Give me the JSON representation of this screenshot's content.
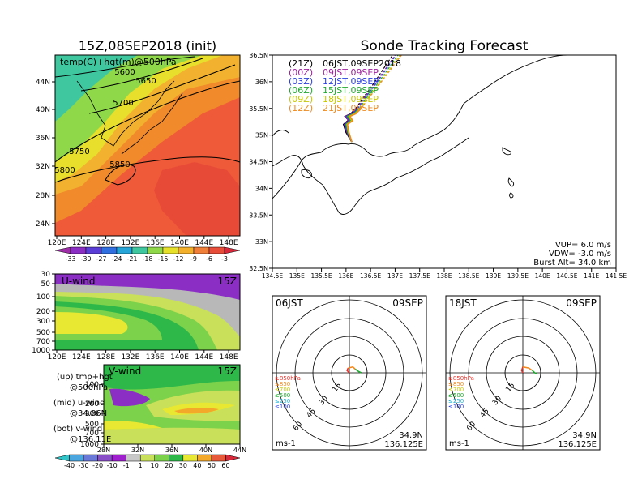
{
  "page": {
    "init_title": "15Z,08SEP2018 (init)",
    "main_title": "Sonde Tracking Forecast"
  },
  "map500": {
    "label": "temp(C)+hgt(m)@500hPa",
    "contour_labels": [
      "5600",
      "5650",
      "5700",
      "5750",
      "5850",
      "5800"
    ],
    "lat_ticks": [
      "44N",
      "40N",
      "36N",
      "32N",
      "28N",
      "24N"
    ],
    "lon_ticks": [
      "120E",
      "124E",
      "128E",
      "132E",
      "136E",
      "140E",
      "144E",
      "148E"
    ],
    "colorbar_labels": [
      "-33",
      "-30",
      "-27",
      "-24",
      "-21",
      "-18",
      "-15",
      "-12",
      "-9",
      "-6",
      "-3"
    ],
    "colorbar_colors": [
      "#9f2fa8",
      "#8a2ec4",
      "#5a3dd6",
      "#2f6fe0",
      "#26a6d8",
      "#3fc8a0",
      "#8fd84a",
      "#e6e02a",
      "#f3b02a",
      "#f07f3a",
      "#e84d3a",
      "#d8283a"
    ]
  },
  "uwind": {
    "label": "U-wind",
    "time": "15Z",
    "p_ticks": [
      "30",
      "50",
      "100",
      "200",
      "300",
      "500",
      "700",
      "1000"
    ],
    "lon_ticks": [
      "120E",
      "124E",
      "128E",
      "132E",
      "136E",
      "140E",
      "144E",
      "148E"
    ]
  },
  "vwind": {
    "label": "V-wind",
    "time": "15Z",
    "p_ticks": [
      "100",
      "200",
      "300",
      "500",
      "700",
      "1000"
    ],
    "lat_ticks": [
      "28N",
      "32N",
      "36N",
      "40N",
      "44N"
    ]
  },
  "legend_text": {
    "up1": "(up) tmp+hgt",
    "up2": "@500hPa",
    "mid1": "(mid) u-wind",
    "mid2": "@34.86N",
    "bot1": "(bot) v-wind",
    "bot2": "@136.11E"
  },
  "wind_colorbar": {
    "labels": [
      "-40",
      "-30",
      "-20",
      "-10",
      "-1",
      "1",
      "10",
      "20",
      "30",
      "40",
      "50",
      "60"
    ],
    "colors": [
      "#2ec4c8",
      "#4ba6e0",
      "#6a78d8",
      "#8a4fc8",
      "#a020d0",
      "#c8c8c8",
      "#c8e05a",
      "#7cd24a",
      "#2eb84a",
      "#e8e832",
      "#f3a82a",
      "#e8583a",
      "#d8283a"
    ]
  },
  "track_map": {
    "legend": [
      {
        "code": "(21Z)",
        "time": "06JST,09SEP2018",
        "color": "#000000"
      },
      {
        "code": "(00Z)",
        "time": "09JST,09SEP",
        "color": "#a020a0"
      },
      {
        "code": "(03Z)",
        "time": "12JST,09SEP",
        "color": "#2a3fe0"
      },
      {
        "code": "(06Z)",
        "time": "15JST,09SEP",
        "color": "#20a830"
      },
      {
        "code": "(09Z)",
        "time": "18JST,09SEP",
        "color": "#c8c800"
      },
      {
        "code": "(12Z)",
        "time": "21JST,09SEP",
        "color": "#f08a20"
      }
    ],
    "lat_ticks": [
      "36.5N",
      "36N",
      "35.5N",
      "35N",
      "34.5N",
      "34N",
      "33.5N",
      "33N",
      "32.5N"
    ],
    "lon_ticks": [
      "134.5E",
      "135E",
      "135.5E",
      "136E",
      "136.5E",
      "137E",
      "137.5E",
      "138E",
      "138.5E",
      "139E",
      "139.5E",
      "140E",
      "140.5E",
      "141E",
      "141.5E"
    ],
    "vup": "VUP= 6.0 m/s",
    "vdw": "VDW= -3.0 m/s",
    "burst": "Burst Alt= 34.0 km"
  },
  "hodograph_left": {
    "time": "06JST",
    "date": "09SEP",
    "lat": "34.9N",
    "lon": "136.125E",
    "unit": "ms-1",
    "rings": [
      "15",
      "30",
      "45",
      "60"
    ],
    "levels": [
      "≥850hPa",
      "≤850",
      "≤700",
      "≤500",
      "≤250",
      "≤100"
    ]
  },
  "hodograph_right": {
    "time": "18JST",
    "date": "09SEP",
    "lat": "34.9N",
    "lon": "136.125E",
    "unit": "ms-1",
    "rings": [
      "15",
      "30",
      "45",
      "60"
    ],
    "levels": [
      "≥850hPa",
      "≤850",
      "≤700",
      "≤500",
      "≤250",
      "≤100"
    ]
  },
  "level_colors": [
    "#e8302a",
    "#f08a20",
    "#c8c800",
    "#20a830",
    "#20b0d0",
    "#2a3fe0"
  ],
  "chart_data": [
    {
      "type": "heatmap",
      "title": "15Z,08SEP2018 (init)",
      "subtitle": "temp(C)+hgt(m)@500hPa",
      "xlim": [
        "120E",
        "150E"
      ],
      "ylim": [
        "22N",
        "48N"
      ],
      "contours": [
        5600,
        5650,
        5700,
        5750,
        5800,
        5850
      ],
      "colorbar": [
        -33,
        -30,
        -27,
        -24,
        -21,
        -18,
        -15,
        -12,
        -9,
        -6,
        -3
      ]
    },
    {
      "type": "heatmap",
      "title": "U-wind",
      "x": [
        "120E",
        "124E",
        "128E",
        "132E",
        "136E",
        "140E",
        "144E",
        "148E"
      ],
      "y_pressure_hPa": [
        30,
        50,
        100,
        200,
        300,
        500,
        700,
        1000
      ]
    },
    {
      "type": "heatmap",
      "title": "V-wind",
      "x": [
        "28N",
        "32N",
        "36N",
        "40N",
        "44N"
      ],
      "y_pressure_hPa": [
        100,
        200,
        300,
        500,
        700,
        1000
      ],
      "colorbar": [
        -40,
        -30,
        -20,
        -10,
        -1,
        1,
        10,
        20,
        30,
        40,
        50,
        60
      ]
    },
    {
      "type": "line",
      "title": "Sonde Tracking Forecast",
      "xlim": [
        134.5,
        141.5
      ],
      "ylim": [
        32.5,
        36.5
      ],
      "series": [
        {
          "name": "(21Z) 06JST,09SEP2018",
          "x": [
            136.12,
            136.0,
            135.95,
            136.05,
            135.98,
            136.1,
            136.2,
            136.35,
            136.55,
            136.95
          ],
          "y": [
            34.87,
            35.05,
            35.2,
            35.28,
            35.35,
            35.4,
            35.5,
            35.7,
            35.95,
            36.5
          ]
        },
        {
          "name": "(00Z) 09JST,09SEP",
          "x": [
            136.12,
            136.02,
            135.97,
            136.06,
            135.99,
            136.12,
            136.22,
            136.37,
            136.58,
            137.0
          ],
          "y": [
            34.87,
            35.05,
            35.2,
            35.27,
            35.35,
            35.4,
            35.5,
            35.7,
            35.95,
            36.5
          ]
        },
        {
          "name": "(03Z) 12JST,09SEP",
          "x": [
            136.12,
            136.03,
            135.98,
            136.08,
            136.01,
            136.14,
            136.24,
            136.39,
            136.6,
            137.02
          ],
          "y": [
            34.87,
            35.05,
            35.2,
            35.27,
            35.35,
            35.4,
            35.5,
            35.7,
            35.95,
            36.5
          ]
        },
        {
          "name": "(06Z) 15JST,09SEP",
          "x": [
            136.12,
            136.04,
            136.0,
            136.1,
            136.03,
            136.16,
            136.27,
            136.42,
            136.63,
            137.06
          ],
          "y": [
            34.87,
            35.05,
            35.2,
            35.27,
            35.35,
            35.4,
            35.5,
            35.7,
            35.95,
            36.5
          ]
        },
        {
          "name": "(09Z) 18JST,09SEP",
          "x": [
            136.12,
            136.05,
            136.02,
            136.12,
            136.06,
            136.18,
            136.29,
            136.45,
            136.66,
            137.1
          ],
          "y": [
            34.87,
            35.05,
            35.2,
            35.27,
            35.35,
            35.4,
            35.5,
            35.7,
            35.95,
            36.5
          ]
        },
        {
          "name": "(12Z) 21JST,09SEP",
          "x": [
            136.12,
            136.06,
            136.03,
            136.14,
            136.08,
            136.2,
            136.31,
            136.47,
            136.68,
            137.13
          ],
          "y": [
            34.87,
            35.05,
            35.2,
            35.27,
            35.35,
            35.4,
            35.5,
            35.7,
            35.95,
            36.5
          ]
        }
      ]
    },
    {
      "type": "line",
      "title": "06JST 09SEP",
      "series": [
        {
          "name": "≥850hPa",
          "u": [
            0,
            -2,
            -1
          ],
          "v": [
            0,
            2,
            4
          ]
        },
        {
          "name": "≤850",
          "u": [
            -1,
            3,
            5
          ],
          "v": [
            4,
            5,
            3
          ]
        },
        {
          "name": "≤500",
          "u": [
            5,
            8,
            10
          ],
          "v": [
            3,
            1,
            0
          ]
        }
      ]
    },
    {
      "type": "line",
      "title": "18JST 09SEP",
      "series": [
        {
          "name": "≥850hPa",
          "u": [
            0,
            -1,
            0
          ],
          "v": [
            0,
            2,
            5
          ]
        },
        {
          "name": "≤850",
          "u": [
            0,
            5,
            8
          ],
          "v": [
            5,
            4,
            2
          ]
        },
        {
          "name": "≤500",
          "u": [
            8,
            10,
            12
          ],
          "v": [
            2,
            0,
            -1
          ]
        }
      ]
    }
  ]
}
